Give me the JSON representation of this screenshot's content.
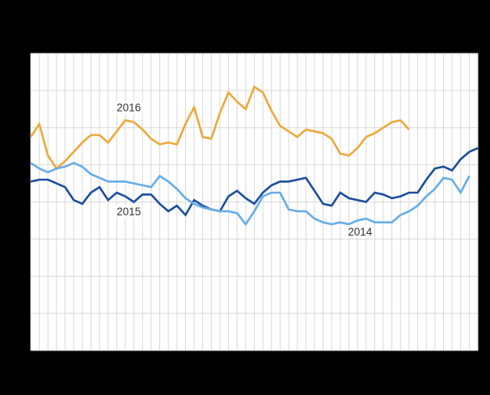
{
  "chart_data": {
    "type": "line",
    "title": "",
    "xlabel": "",
    "ylabel": "",
    "x_unit": "week-of-year",
    "xlim": [
      1,
      53
    ],
    "ylim": [
      0,
      80
    ],
    "y_grid_step": 10,
    "x_grid_step": 1,
    "grid": true,
    "legend_position": "inline-annotations",
    "series": [
      {
        "name": "2016",
        "color": "#EBA93C",
        "start_week": 1,
        "values": [
          57.5,
          61,
          52.5,
          49,
          51,
          53.5,
          56,
          58,
          58,
          56,
          59,
          62,
          61.5,
          59.5,
          57,
          55.5,
          56,
          55.5,
          61,
          65.5,
          57.5,
          57,
          64,
          69.5,
          67,
          65,
          71,
          69.5,
          64.5,
          60.5,
          59,
          57.5,
          59.5,
          59,
          58.5,
          57,
          53,
          52.5,
          54.5,
          57.5,
          58.5,
          60,
          61.5,
          62,
          59.5
        ]
      },
      {
        "name": "2015",
        "color": "#1C4E9E",
        "start_week": 1,
        "values": [
          45.5,
          46,
          46,
          45,
          44,
          40.5,
          39.5,
          42.5,
          44,
          40.5,
          42.5,
          41.5,
          40,
          42,
          42,
          39.5,
          37.5,
          39,
          36.5,
          40.5,
          39,
          38,
          37.5,
          41.5,
          43,
          41,
          39.5,
          42.5,
          44.5,
          45.5,
          45.5,
          46,
          46.5,
          43,
          39.5,
          39,
          42.5,
          41,
          40.5,
          40,
          42.5,
          42,
          41,
          41.5,
          42.5,
          42.5,
          46,
          49,
          49.5,
          48.5,
          51.5,
          53.5,
          54.5
        ]
      },
      {
        "name": "2014",
        "color": "#66ACE8",
        "start_week": 1,
        "values": [
          50.5,
          49,
          48,
          49,
          49.5,
          50.5,
          49.5,
          47.5,
          46.5,
          45.5,
          45.5,
          45.5,
          45,
          44.5,
          44,
          47,
          45.5,
          43.5,
          41,
          39.5,
          38.5,
          38,
          37.5,
          37.5,
          37,
          34,
          37.5,
          41.5,
          42.5,
          42.5,
          38,
          37.5,
          37.5,
          35.5,
          34.5,
          34,
          34.5,
          34,
          35,
          35.5,
          34.5,
          34.5,
          34.5,
          36.5,
          37.5,
          39,
          41.5,
          43.5,
          46.5,
          46,
          42.5,
          47
        ]
      }
    ],
    "annotations": [
      {
        "text": "2016",
        "week": 12.4,
        "value": 65.5
      },
      {
        "text": "2015",
        "week": 12.4,
        "value": 37.5
      },
      {
        "text": "2014",
        "week": 39.3,
        "value": 32
      }
    ]
  },
  "style": {
    "page_background": "#000000",
    "plot_background": "#FFFFFF",
    "grid_color": "#D9D9D9",
    "annotation_color": "#333333"
  }
}
